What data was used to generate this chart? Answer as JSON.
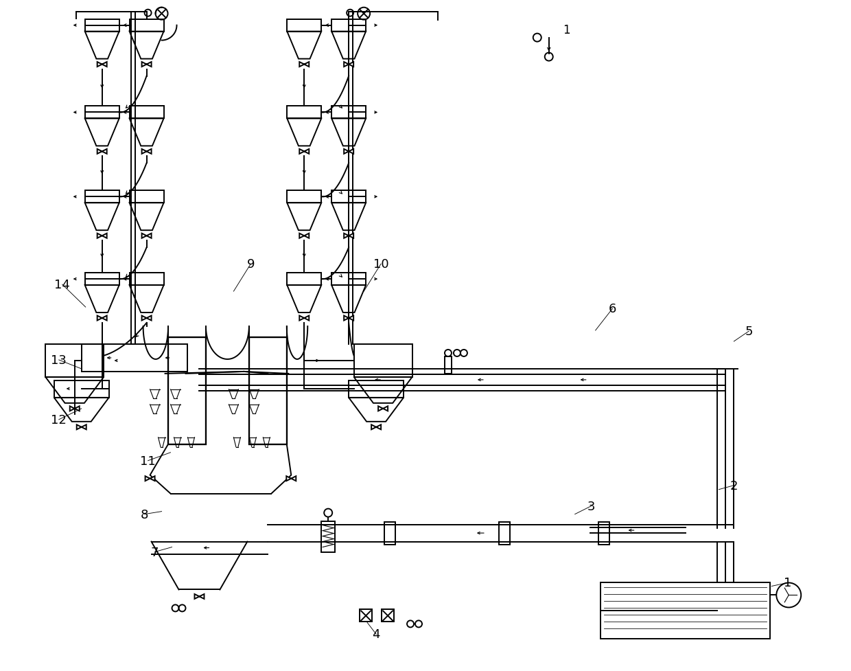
{
  "bg": "#ffffff",
  "lc": "#000000",
  "lw": 1.4,
  "lw_thin": 0.8,
  "lw_thick": 2.2,
  "cyclone_bw": 50,
  "cyclone_bh": 18,
  "cyclone_ch": 40,
  "stage_tops": [
    28,
    155,
    278,
    398
  ],
  "LCA": 148,
  "LCB": 213,
  "RCA": 443,
  "RCB": 508,
  "labels": [
    [
      "1",
      1148,
      850
    ],
    [
      "2",
      1070,
      708
    ],
    [
      "3",
      862,
      738
    ],
    [
      "4",
      548,
      925
    ],
    [
      "5",
      1092,
      483
    ],
    [
      "6",
      893,
      450
    ],
    [
      "7",
      225,
      805
    ],
    [
      "8",
      210,
      750
    ],
    [
      "9",
      365,
      385
    ],
    [
      "10",
      555,
      385
    ],
    [
      "11",
      215,
      672
    ],
    [
      "12",
      85,
      612
    ],
    [
      "13",
      85,
      525
    ],
    [
      "14",
      90,
      415
    ]
  ],
  "leader_lines": [
    [
      1148,
      850,
      1125,
      855
    ],
    [
      1070,
      708,
      1048,
      714
    ],
    [
      862,
      738,
      838,
      750
    ],
    [
      548,
      925,
      535,
      908
    ],
    [
      1092,
      483,
      1070,
      498
    ],
    [
      893,
      450,
      868,
      482
    ],
    [
      225,
      805,
      250,
      798
    ],
    [
      210,
      750,
      235,
      746
    ],
    [
      365,
      385,
      340,
      425
    ],
    [
      555,
      385,
      530,
      425
    ],
    [
      215,
      672,
      248,
      660
    ],
    [
      85,
      612,
      118,
      596
    ],
    [
      85,
      525,
      118,
      538
    ],
    [
      90,
      415,
      124,
      448
    ]
  ]
}
